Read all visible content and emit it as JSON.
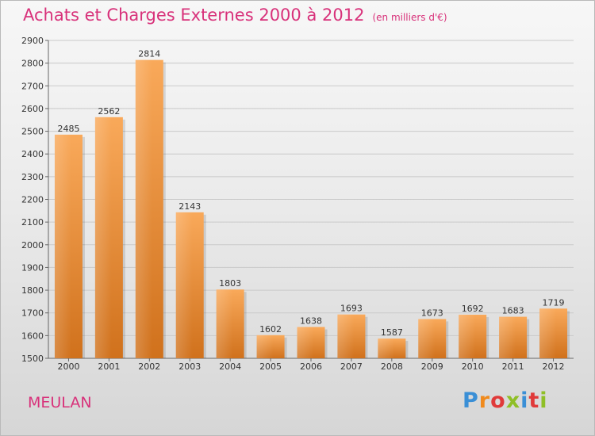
{
  "title": "Achats et Charges Externes 2000 à 2012",
  "unit_note": "(en milliers d'€)",
  "commune": "MEULAN",
  "logo": "Proxiti",
  "colors": {
    "accent": "#d8317a",
    "bar_light": "#f9a95a",
    "bar_dark": "#d0711c"
  },
  "chart_data": {
    "type": "bar",
    "title": "Achats et Charges Externes 2000 à 2012",
    "subtitle": "(en milliers d'€)",
    "xlabel": "",
    "ylabel": "",
    "categories": [
      "2000",
      "2001",
      "2002",
      "2003",
      "2004",
      "2005",
      "2006",
      "2007",
      "2008",
      "2009",
      "2010",
      "2011",
      "2012"
    ],
    "values": [
      2485,
      2562,
      2814,
      2143,
      1803,
      1602,
      1638,
      1693,
      1587,
      1673,
      1692,
      1683,
      1719
    ],
    "value_labels": [
      "2485",
      "2562",
      "2814",
      "2143",
      "1803",
      "1602",
      "1638",
      "1693",
      "1587",
      "1673",
      "1692",
      "1683",
      "1719"
    ],
    "ylim": [
      1500,
      2900
    ],
    "yticks": [
      "1500",
      "1600",
      "1700",
      "1800",
      "1900",
      "2000",
      "2100",
      "2200",
      "2300",
      "2400",
      "2500",
      "2600",
      "2700",
      "2800",
      "2900"
    ],
    "grid": true
  }
}
